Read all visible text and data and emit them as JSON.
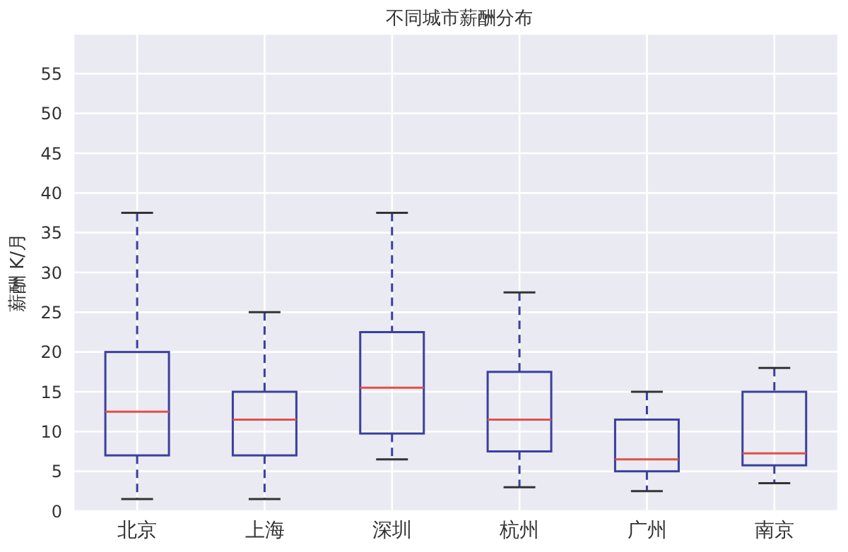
{
  "chart_data": {
    "type": "box",
    "title": "不同城市薪酬分布",
    "ylabel": "薪酬 K/月",
    "categories": [
      "北京",
      "上海",
      "深圳",
      "杭州",
      "广州",
      "南京"
    ],
    "color": "#3a3f9e",
    "boxes": [
      {
        "low": 1.5,
        "q1": 7,
        "median": 12.5,
        "q3": 20,
        "high": 37.5
      },
      {
        "low": 1.5,
        "q1": 7,
        "median": 11.5,
        "q3": 15,
        "high": 25
      },
      {
        "low": 6.5,
        "q1": 9.75,
        "median": 15.5,
        "q3": 22.5,
        "high": 37.5
      },
      {
        "low": 3,
        "q1": 7.5,
        "median": 11.5,
        "q3": 17.5,
        "high": 27.5
      },
      {
        "low": 2.5,
        "q1": 5,
        "median": 6.5,
        "q3": 11.5,
        "high": 15
      },
      {
        "low": 3.5,
        "q1": 5.75,
        "median": 7.25,
        "q3": 15,
        "high": 18
      }
    ],
    "ylim": [
      0,
      60
    ],
    "yticks": [
      0,
      5,
      10,
      15,
      20,
      25,
      30,
      35,
      40,
      45,
      50,
      55
    ],
    "grid": true
  }
}
